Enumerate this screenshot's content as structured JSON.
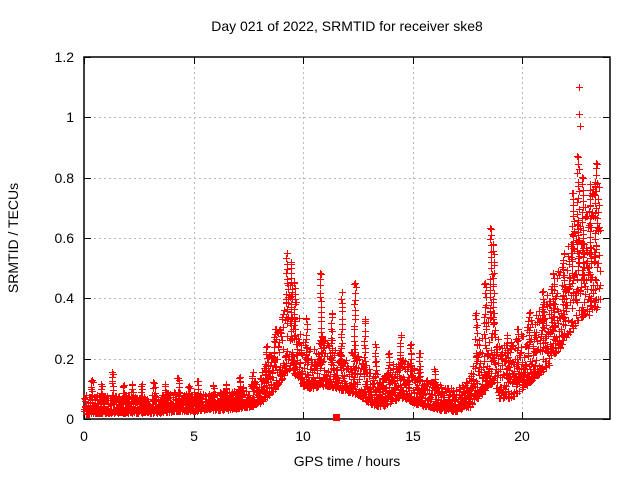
{
  "page": {
    "background": "#ffffff",
    "text_color": "#000000"
  },
  "chart_data": {
    "type": "scatter",
    "title": "Day 021 of 2022, SRMTID for receiver ske8",
    "xlabel": "GPS time / hours",
    "ylabel": "SRMTID / TECUs",
    "xlim": [
      0,
      24
    ],
    "ylim": [
      0,
      1.2
    ],
    "xticks": [
      {
        "v": 0,
        "label": "0"
      },
      {
        "v": 5,
        "label": "5"
      },
      {
        "v": 10,
        "label": "10"
      },
      {
        "v": 15,
        "label": "15"
      },
      {
        "v": 20,
        "label": "20"
      }
    ],
    "yticks": [
      {
        "v": 0,
        "label": "0"
      },
      {
        "v": 0.2,
        "label": "0.2"
      },
      {
        "v": 0.4,
        "label": "0.4"
      },
      {
        "v": 0.6,
        "label": "0.6"
      },
      {
        "v": 0.8,
        "label": "0.8"
      },
      {
        "v": 1,
        "label": "1"
      },
      {
        "v": 1.2,
        "label": "1.2"
      }
    ],
    "grid": true,
    "grid_color": "#b9b9b9",
    "border_color": "#000000",
    "marker": "plus",
    "marker_color": "#ff0000",
    "marker_size": 7,
    "seed": 2122,
    "sample_step_hours": 0.0083333,
    "t_end": 23.55,
    "band_skew": 1.7,
    "envelope": [
      [
        0.0,
        0.015,
        0.085
      ],
      [
        0.5,
        0.02,
        0.08
      ],
      [
        1.0,
        0.02,
        0.085
      ],
      [
        1.5,
        0.02,
        0.08
      ],
      [
        2.0,
        0.02,
        0.08
      ],
      [
        2.5,
        0.02,
        0.075
      ],
      [
        3.0,
        0.02,
        0.08
      ],
      [
        3.5,
        0.02,
        0.08
      ],
      [
        4.0,
        0.025,
        0.09
      ],
      [
        4.5,
        0.025,
        0.085
      ],
      [
        5.0,
        0.025,
        0.09
      ],
      [
        5.5,
        0.03,
        0.085
      ],
      [
        6.0,
        0.03,
        0.09
      ],
      [
        6.5,
        0.03,
        0.095
      ],
      [
        7.0,
        0.035,
        0.1
      ],
      [
        7.5,
        0.04,
        0.115
      ],
      [
        8.0,
        0.05,
        0.14
      ],
      [
        8.5,
        0.08,
        0.22
      ],
      [
        9.0,
        0.13,
        0.35
      ],
      [
        9.4,
        0.17,
        0.48
      ],
      [
        9.7,
        0.14,
        0.38
      ],
      [
        10.0,
        0.11,
        0.28
      ],
      [
        10.4,
        0.1,
        0.22
      ],
      [
        10.8,
        0.11,
        0.28
      ],
      [
        11.2,
        0.11,
        0.25
      ],
      [
        11.6,
        0.1,
        0.23
      ],
      [
        12.0,
        0.09,
        0.23
      ],
      [
        12.5,
        0.08,
        0.21
      ],
      [
        13.0,
        0.05,
        0.17
      ],
      [
        13.6,
        0.04,
        0.14
      ],
      [
        14.1,
        0.06,
        0.19
      ],
      [
        14.6,
        0.07,
        0.21
      ],
      [
        15.1,
        0.05,
        0.17
      ],
      [
        15.7,
        0.04,
        0.13
      ],
      [
        16.3,
        0.03,
        0.11
      ],
      [
        17.0,
        0.025,
        0.1
      ],
      [
        17.6,
        0.04,
        0.14
      ],
      [
        18.1,
        0.08,
        0.28
      ],
      [
        18.6,
        0.12,
        0.38
      ],
      [
        19.0,
        0.06,
        0.24
      ],
      [
        19.5,
        0.07,
        0.26
      ],
      [
        20.0,
        0.1,
        0.3
      ],
      [
        20.5,
        0.13,
        0.34
      ],
      [
        21.0,
        0.16,
        0.4
      ],
      [
        21.5,
        0.21,
        0.47
      ],
      [
        22.0,
        0.27,
        0.56
      ],
      [
        22.5,
        0.32,
        0.66
      ],
      [
        23.0,
        0.34,
        0.74
      ],
      [
        23.55,
        0.38,
        0.85
      ]
    ],
    "spikes": [
      [
        0.35,
        0.13
      ],
      [
        0.8,
        0.11
      ],
      [
        1.3,
        0.155
      ],
      [
        1.8,
        0.11
      ],
      [
        2.2,
        0.115
      ],
      [
        2.6,
        0.11
      ],
      [
        3.2,
        0.12
      ],
      [
        3.7,
        0.11
      ],
      [
        4.3,
        0.135
      ],
      [
        4.8,
        0.11
      ],
      [
        5.2,
        0.125
      ],
      [
        5.9,
        0.11
      ],
      [
        6.5,
        0.115
      ],
      [
        7.1,
        0.14
      ],
      [
        7.7,
        0.155
      ],
      [
        8.3,
        0.24
      ],
      [
        8.7,
        0.3
      ],
      [
        9.25,
        0.55
      ],
      [
        9.45,
        0.52
      ],
      [
        9.6,
        0.45
      ],
      [
        10.15,
        0.33
      ],
      [
        10.8,
        0.48
      ],
      [
        11.3,
        0.35
      ],
      [
        11.75,
        0.42
      ],
      [
        12.35,
        0.45
      ],
      [
        12.8,
        0.33
      ],
      [
        13.3,
        0.25
      ],
      [
        13.9,
        0.22
      ],
      [
        14.45,
        0.28
      ],
      [
        14.9,
        0.25
      ],
      [
        15.3,
        0.22
      ],
      [
        16.0,
        0.16
      ],
      [
        17.9,
        0.35
      ],
      [
        18.3,
        0.45
      ],
      [
        18.55,
        0.63
      ],
      [
        18.68,
        0.58
      ],
      [
        19.3,
        0.28
      ],
      [
        19.8,
        0.3
      ],
      [
        20.3,
        0.35
      ],
      [
        20.9,
        0.42
      ],
      [
        21.4,
        0.48
      ],
      [
        21.9,
        0.55
      ],
      [
        22.3,
        0.75
      ],
      [
        22.55,
        0.87
      ],
      [
        22.75,
        0.8
      ],
      [
        23.1,
        0.78
      ],
      [
        23.35,
        0.85
      ]
    ],
    "outliers": [
      [
        22.58,
        1.1
      ],
      [
        22.6,
        1.01
      ],
      [
        22.63,
        0.97
      ]
    ],
    "special_points": [
      {
        "x": 11.54,
        "y": 0.004,
        "marker": "filled-square",
        "color": "#ff0000",
        "size": 7
      }
    ]
  }
}
